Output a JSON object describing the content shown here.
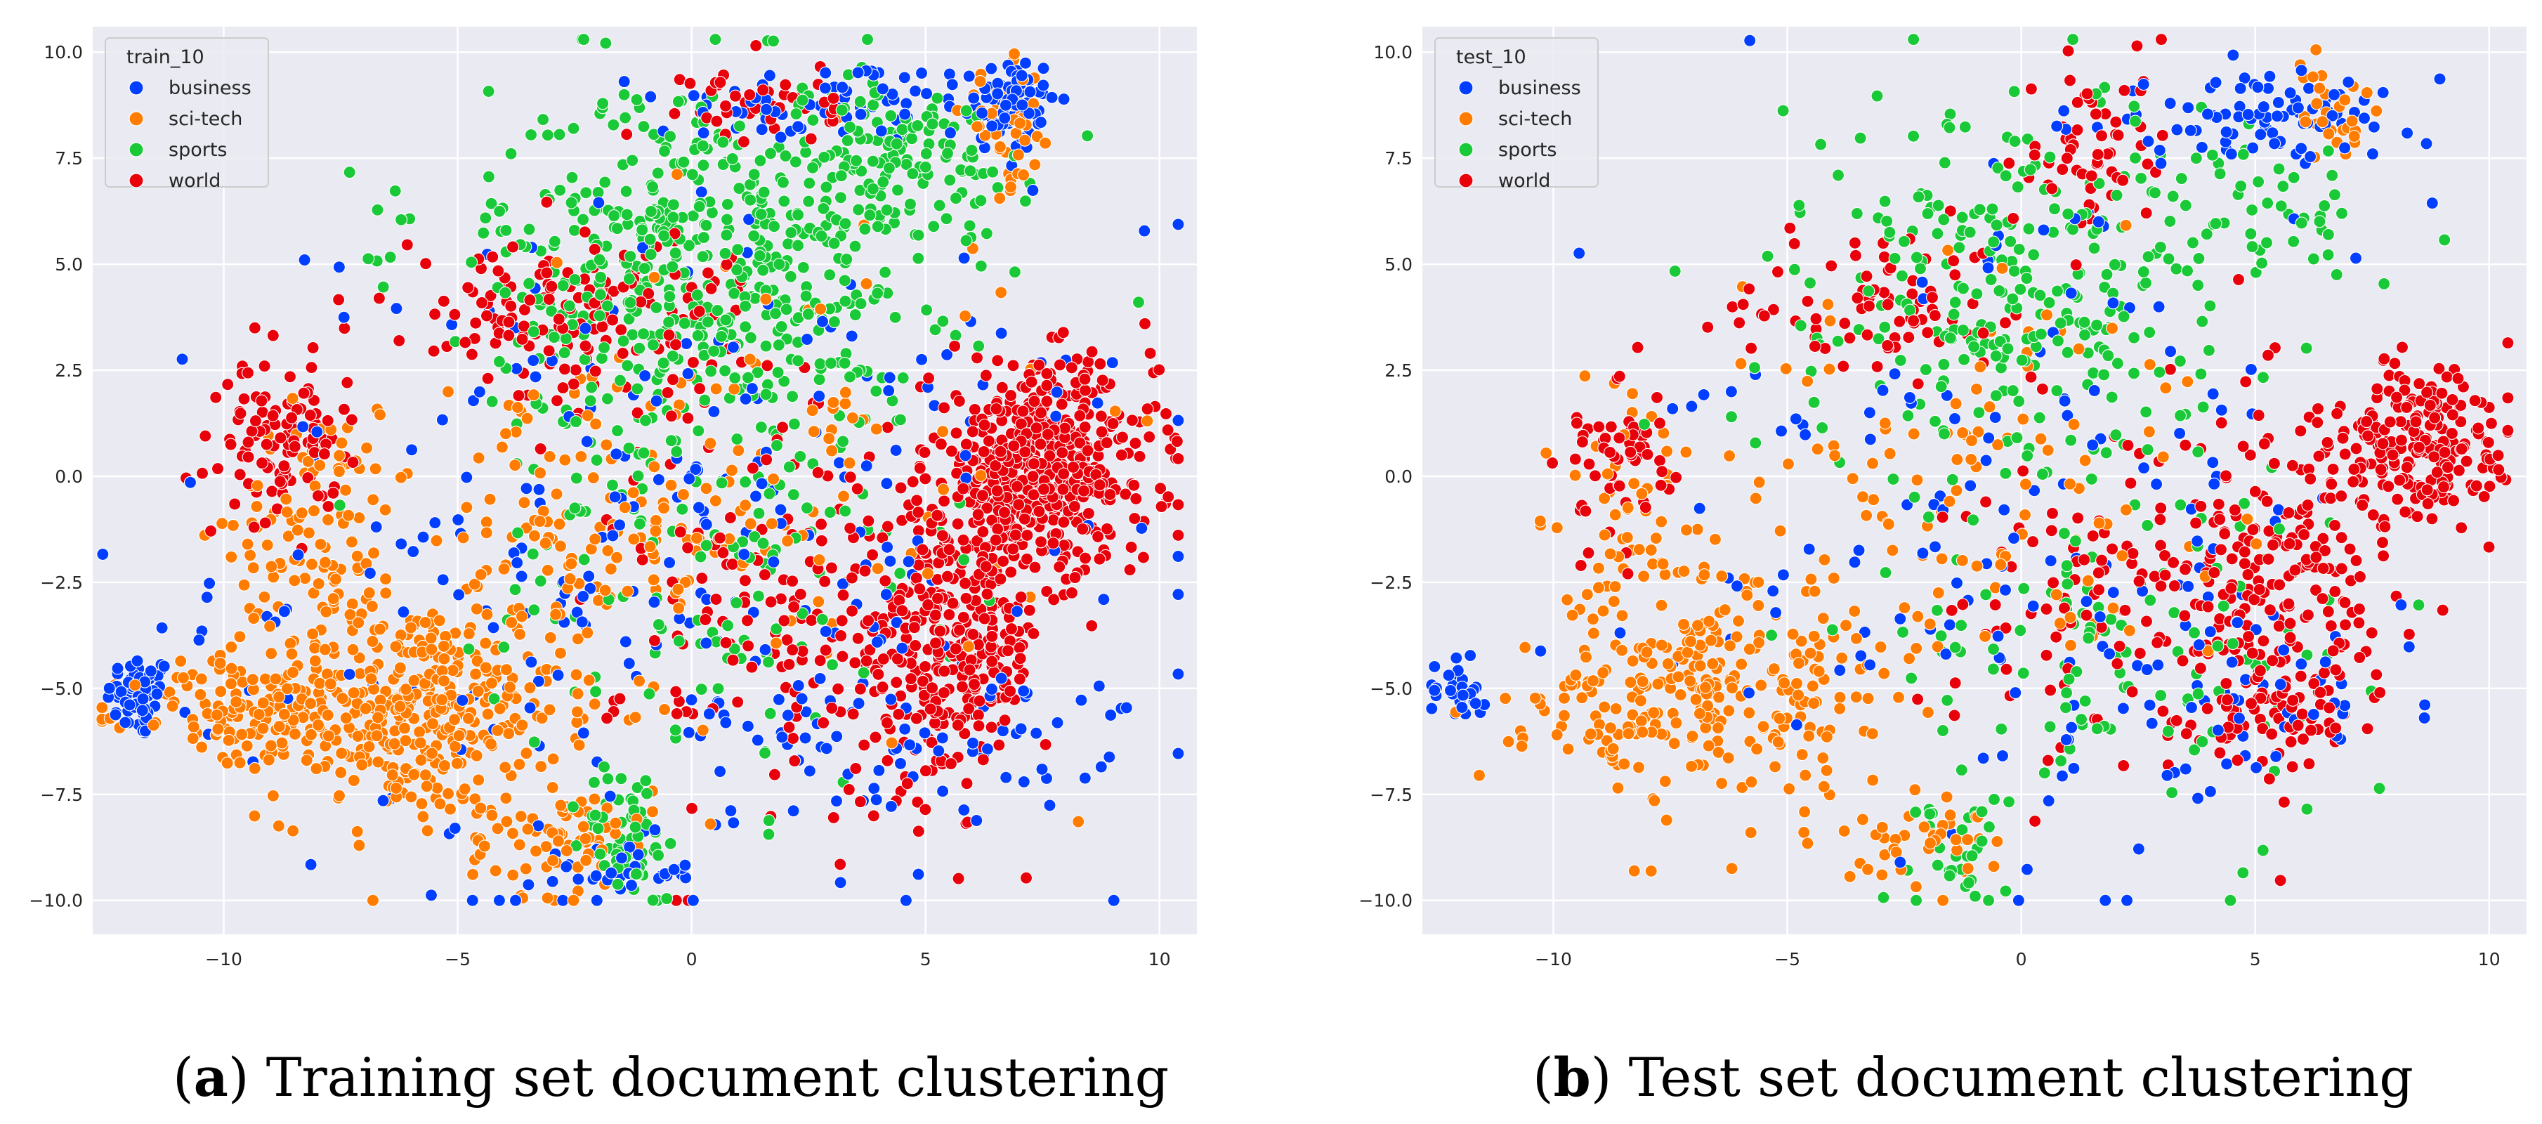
{
  "figure": {
    "captions": [
      {
        "letter": "a",
        "text": "Training set document clustering"
      },
      {
        "letter": "b",
        "text": "Test set document clustering"
      }
    ]
  },
  "chart_data": [
    {
      "type": "scatter",
      "legend_title": "train_10",
      "legend_position": "top-left",
      "xlim": [
        -12.8,
        10.8
      ],
      "ylim": [
        -10.8,
        10.6
      ],
      "xticks": [
        -10,
        -5,
        0,
        5,
        10
      ],
      "yticks": [
        -10.0,
        -7.5,
        -5.0,
        -2.5,
        0.0,
        2.5,
        5.0,
        7.5,
        10.0
      ],
      "grid": true,
      "series": [
        {
          "name": "business",
          "color": "#023eff",
          "clusters": [
            {
              "cx": -11.8,
              "cy": -5.2,
              "sx": 0.35,
              "sy": 0.5,
              "n": 60
            },
            {
              "cx": 6.8,
              "cy": 8.8,
              "sx": 0.5,
              "sy": 0.6,
              "n": 80
            },
            {
              "cx": 3.0,
              "cy": 8.8,
              "sx": 1.8,
              "sy": 0.5,
              "n": 70
            },
            {
              "cx": -1.5,
              "cy": -9.3,
              "sx": 0.8,
              "sy": 0.4,
              "n": 35
            },
            {
              "cx": 0.0,
              "cy": -2.0,
              "sx": 5.0,
              "sy": 4.0,
              "n": 280
            },
            {
              "cx": 5.0,
              "cy": -6.0,
              "sx": 2.0,
              "sy": 1.0,
              "n": 60
            }
          ]
        },
        {
          "name": "sci-tech",
          "color": "#ff7c00",
          "clusters": [
            {
              "cx": -6.0,
              "cy": -5.5,
              "sx": 1.6,
              "sy": 1.3,
              "n": 380
            },
            {
              "cx": -9.5,
              "cy": -5.6,
              "sx": 1.2,
              "sy": 0.6,
              "n": 110
            },
            {
              "cx": -8.0,
              "cy": -1.2,
              "sx": 0.9,
              "sy": 1.4,
              "n": 110
            },
            {
              "cx": -2.8,
              "cy": -8.5,
              "sx": 1.0,
              "sy": 0.7,
              "n": 70
            },
            {
              "cx": -2.0,
              "cy": -1.5,
              "sx": 1.8,
              "sy": 1.5,
              "n": 110
            },
            {
              "cx": 6.8,
              "cy": 8.2,
              "sx": 0.5,
              "sy": 0.7,
              "n": 45
            },
            {
              "cx": 1.0,
              "cy": 0.5,
              "sx": 3.5,
              "sy": 3.0,
              "n": 110
            }
          ]
        },
        {
          "name": "sports",
          "color": "#1ac938",
          "clusters": [
            {
              "cx": 0.3,
              "cy": 5.0,
              "sx": 2.3,
              "sy": 2.2,
              "n": 520
            },
            {
              "cx": 4.3,
              "cy": 7.5,
              "sx": 1.5,
              "sy": 0.9,
              "n": 120
            },
            {
              "cx": -1.3,
              "cy": -8.4,
              "sx": 0.5,
              "sy": 0.8,
              "n": 60
            },
            {
              "cx": 0.5,
              "cy": -2.0,
              "sx": 2.5,
              "sy": 2.8,
              "n": 140
            },
            {
              "cx": -6.7,
              "cy": 5.5,
              "sx": 0.4,
              "sy": 1.1,
              "n": 8
            }
          ]
        },
        {
          "name": "world",
          "color": "#e8000b",
          "clusters": [
            {
              "cx": 7.5,
              "cy": 0.2,
              "sx": 1.2,
              "sy": 1.2,
              "n": 520
            },
            {
              "cx": 5.5,
              "cy": -4.0,
              "sx": 1.0,
              "sy": 1.6,
              "n": 300
            },
            {
              "cx": -8.8,
              "cy": 0.8,
              "sx": 0.6,
              "sy": 0.9,
              "n": 110
            },
            {
              "cx": -2.5,
              "cy": 3.8,
              "sx": 2.0,
              "sy": 1.0,
              "n": 170
            },
            {
              "cx": 2.5,
              "cy": -3.5,
              "sx": 2.0,
              "sy": 2.5,
              "n": 160
            },
            {
              "cx": 1.5,
              "cy": 8.8,
              "sx": 0.8,
              "sy": 0.5,
              "n": 45
            }
          ]
        }
      ]
    },
    {
      "type": "scatter",
      "legend_title": "test_10",
      "legend_position": "top-left",
      "xlim": [
        -12.8,
        10.8
      ],
      "ylim": [
        -10.8,
        10.6
      ],
      "xticks": [
        -10,
        -5,
        0,
        5,
        10
      ],
      "yticks": [
        -10.0,
        -7.5,
        -5.0,
        -2.5,
        0.0,
        2.5,
        5.0,
        7.5,
        10.0
      ],
      "grid": true,
      "series": [
        {
          "name": "business",
          "color": "#023eff",
          "clusters": [
            {
              "cx": -12.0,
              "cy": -5.0,
              "sx": 0.4,
              "sy": 0.4,
              "n": 30
            },
            {
              "cx": 5.0,
              "cy": 8.4,
              "sx": 1.8,
              "sy": 0.5,
              "n": 90
            },
            {
              "cx": 0.0,
              "cy": -1.5,
              "sx": 4.5,
              "sy": 3.8,
              "n": 160
            },
            {
              "cx": 4.5,
              "cy": -5.5,
              "sx": 1.6,
              "sy": 1.0,
              "n": 40
            }
          ]
        },
        {
          "name": "sci-tech",
          "color": "#ff7c00",
          "clusters": [
            {
              "cx": -6.0,
              "cy": -5.0,
              "sx": 1.6,
              "sy": 1.5,
              "n": 230
            },
            {
              "cx": -8.8,
              "cy": -5.6,
              "sx": 1.3,
              "sy": 0.7,
              "n": 60
            },
            {
              "cx": -8.3,
              "cy": -1.0,
              "sx": 0.9,
              "sy": 1.4,
              "n": 60
            },
            {
              "cx": -2.3,
              "cy": -8.6,
              "sx": 1.0,
              "sy": 0.6,
              "n": 40
            },
            {
              "cx": -1.0,
              "cy": -0.5,
              "sx": 2.5,
              "sy": 2.5,
              "n": 110
            },
            {
              "cx": 6.5,
              "cy": 8.6,
              "sx": 0.5,
              "sy": 0.6,
              "n": 30
            }
          ]
        },
        {
          "name": "sports",
          "color": "#1ac938",
          "clusters": [
            {
              "cx": 0.0,
              "cy": 4.5,
              "sx": 2.4,
              "sy": 2.3,
              "n": 290
            },
            {
              "cx": -1.3,
              "cy": -8.6,
              "sx": 0.5,
              "sy": 0.7,
              "n": 35
            },
            {
              "cx": 2.0,
              "cy": -4.0,
              "sx": 2.5,
              "sy": 2.0,
              "n": 110
            },
            {
              "cx": 5.0,
              "cy": 6.0,
              "sx": 1.2,
              "sy": 1.0,
              "n": 40
            }
          ]
        },
        {
          "name": "world",
          "color": "#e8000b",
          "clusters": [
            {
              "cx": 8.5,
              "cy": 0.8,
              "sx": 0.9,
              "sy": 0.9,
              "n": 220
            },
            {
              "cx": 5.5,
              "cy": -2.0,
              "sx": 1.2,
              "sy": 2.2,
              "n": 200
            },
            {
              "cx": -8.5,
              "cy": 0.5,
              "sx": 0.6,
              "sy": 1.0,
              "n": 60
            },
            {
              "cx": -3.0,
              "cy": 4.0,
              "sx": 1.6,
              "sy": 0.9,
              "n": 80
            },
            {
              "cx": 1.5,
              "cy": 7.8,
              "sx": 0.7,
              "sy": 1.2,
              "n": 60
            },
            {
              "cx": 2.0,
              "cy": -3.0,
              "sx": 2.0,
              "sy": 2.0,
              "n": 110
            },
            {
              "cx": 5.5,
              "cy": -5.5,
              "sx": 1.0,
              "sy": 0.7,
              "n": 70
            }
          ]
        }
      ]
    }
  ]
}
